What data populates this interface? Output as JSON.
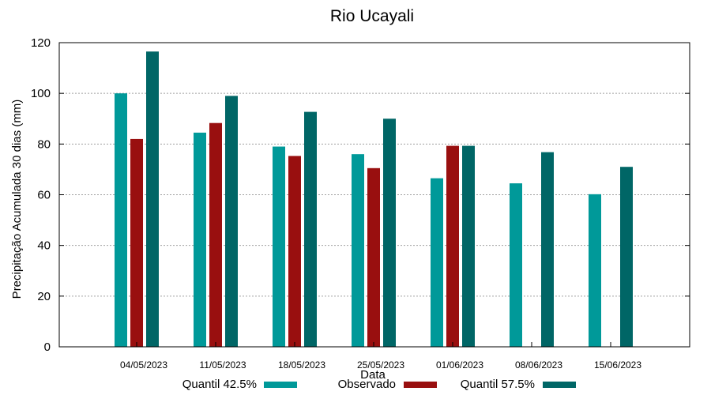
{
  "chart_data": {
    "type": "bar",
    "title": "Rio Ucayali",
    "xlabel": "Data",
    "ylabel": "Precipitação Acumulada 30 dias (mm)",
    "ylim": [
      0,
      120
    ],
    "yticks": [
      0,
      20,
      40,
      60,
      80,
      100,
      120
    ],
    "grid": true,
    "legend_position": "bottom",
    "categories": [
      "04/05/2023",
      "11/05/2023",
      "18/05/2023",
      "25/05/2023",
      "01/06/2023",
      "08/06/2023",
      "15/06/2023"
    ],
    "series": [
      {
        "name": "Quantil 42.5%",
        "color": "#009999",
        "values": [
          100,
          84.5,
          79,
          76,
          66.5,
          64.5,
          60.2
        ]
      },
      {
        "name": "Observado",
        "color": "#990f0f",
        "values": [
          82,
          88.3,
          75.3,
          70.5,
          79.3,
          null,
          null
        ]
      },
      {
        "name": "Quantil 57.5%",
        "color": "#006666",
        "values": [
          116.5,
          99,
          92.7,
          90,
          79.3,
          76.8,
          71
        ]
      }
    ]
  }
}
